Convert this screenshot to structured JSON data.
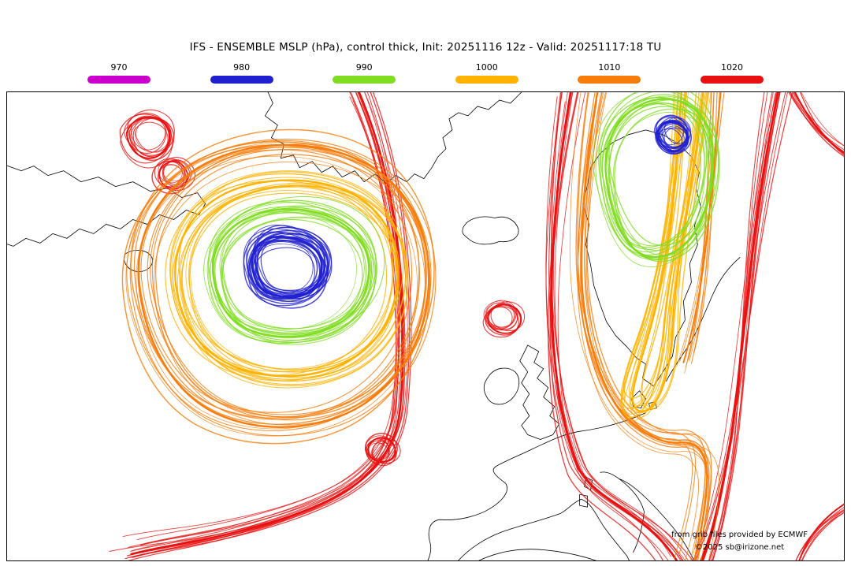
{
  "title": "IFS - ENSEMBLE MSLP (hPa), control thick, Init: 20251116 12z - Valid: 20251117:18 TU",
  "legend": {
    "labels": [
      "970",
      "980",
      "990",
      "1000",
      "1010",
      "1020"
    ]
  },
  "credits": {
    "provider": "from grib files provided by ECMWF",
    "copyright": "©2025 sb@irizone.net"
  },
  "chart_data": {
    "type": "contour-ensemble-map",
    "model": "IFS",
    "field": "ENSEMBLE MSLP (hPa)",
    "member_style": "control thick",
    "init": "20251116 12z",
    "valid": "20251117:18 TU",
    "region": "North Atlantic and Europe",
    "levels_hpa": [
      970,
      980,
      990,
      1000,
      1010,
      1020
    ],
    "level_colors": {
      "970": "#cc00cc",
      "980": "#2020d0",
      "990": "#80dd20",
      "1000": "#ffb300",
      "1010": "#f87c09",
      "1020": "#e81010"
    }
  }
}
